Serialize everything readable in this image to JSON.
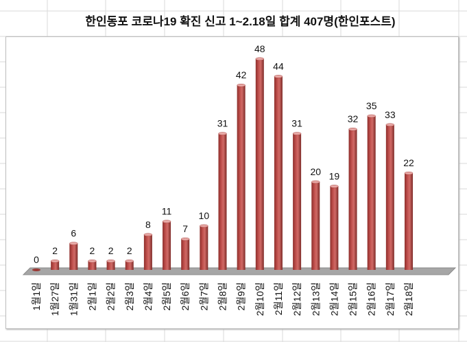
{
  "chart_data": {
    "type": "bar",
    "title": "한인동포 코로나19 확진 신고 1~2.18일 합계 407명(한인포스트)",
    "categories": [
      "1월1일",
      "1월27일",
      "1월31일",
      "2월1일",
      "2월2일",
      "2월3일",
      "2월4일",
      "2월5일",
      "2월6일",
      "2월7일",
      "2월8일",
      "2월9일",
      "2월10일",
      "2월11일",
      "2월12일",
      "2월13일",
      "2월14일",
      "2월15일",
      "2월16일",
      "2월17일",
      "2월18일"
    ],
    "values": [
      0,
      2,
      6,
      2,
      2,
      2,
      8,
      11,
      7,
      10,
      31,
      42,
      48,
      44,
      31,
      20,
      19,
      32,
      35,
      33,
      22
    ],
    "xlabel": "",
    "ylabel": "",
    "ylim": [
      0,
      50
    ],
    "grid": false,
    "legend": "none",
    "bar_color": "#c0504d",
    "floor_color": "#a6a6a6"
  }
}
